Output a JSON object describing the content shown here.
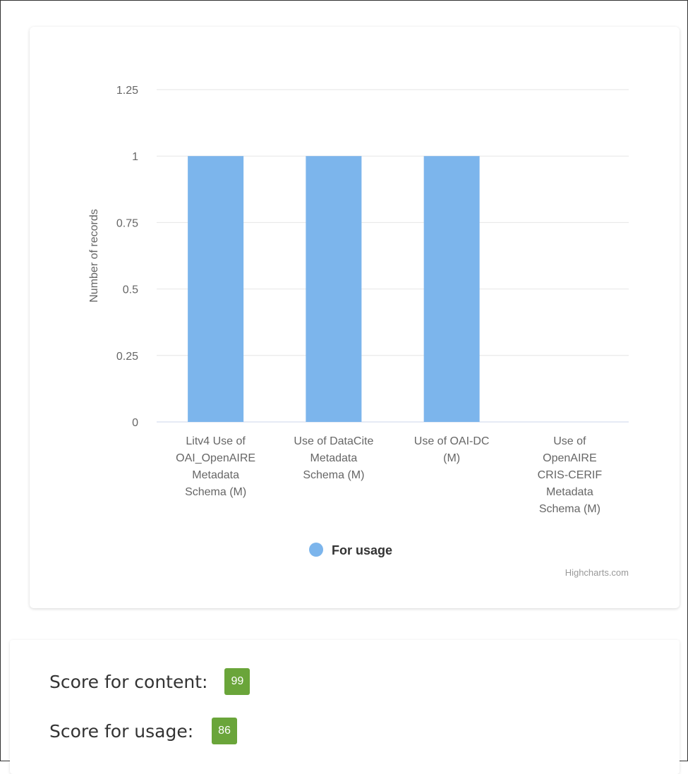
{
  "chart_data": {
    "type": "bar",
    "categories": [
      [
        "Litv4 Use of",
        "OAI_OpenAIRE",
        "Metadata",
        "Schema (M)"
      ],
      [
        "Use of DataCite",
        "Metadata",
        "Schema (M)"
      ],
      [
        "Use of OAI-DC",
        "(M)"
      ],
      [
        "Use of",
        "OpenAIRE",
        "CRIS-CERIF",
        "Metadata",
        "Schema (M)"
      ]
    ],
    "series": [
      {
        "name": "For usage",
        "values": [
          1,
          1,
          1,
          0
        ],
        "color": "#7cb5ec"
      }
    ],
    "xlabel": "",
    "ylabel": "Number of records",
    "ylim": [
      0,
      1.25
    ],
    "yticks": [
      "0",
      "0.25",
      "0.5",
      "0.75",
      "1",
      "1.25"
    ],
    "grid": true,
    "legend_position": "bottom-center",
    "credits": "Highcharts.com"
  },
  "scores": {
    "content_label": "Score for content:",
    "content_value": "99",
    "usage_label": "Score for usage:",
    "usage_value": "86",
    "badge_color": "#6aa53a"
  }
}
